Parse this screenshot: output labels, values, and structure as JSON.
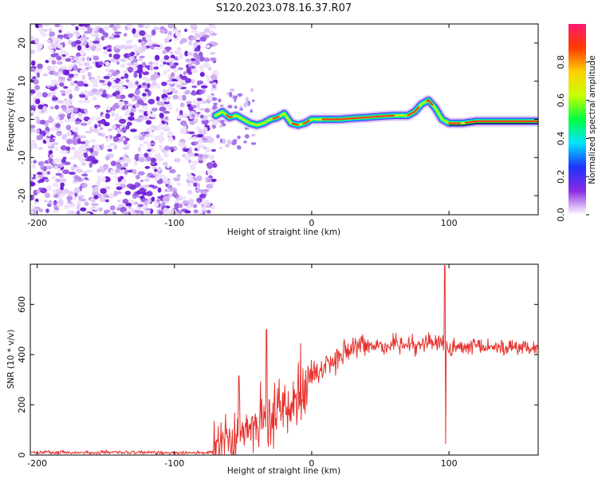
{
  "figure": {
    "title": "S120.2023.078.16.37.R07"
  },
  "chart_data": [
    {
      "type": "heatmap",
      "xlabel": "Height of straight line (km)",
      "ylabel": "Frequency (Hz)",
      "xlim": [
        -205,
        165
      ],
      "ylim": [
        -25,
        25
      ],
      "x_ticks": [
        -200,
        -100,
        0,
        100
      ],
      "y_ticks": [
        -20,
        -10,
        0,
        10,
        20
      ],
      "noise_region_x": [
        -205,
        -70
      ],
      "ridge": {
        "x": [
          -70,
          -65,
          -60,
          -55,
          -50,
          -45,
          -40,
          -35,
          -30,
          -25,
          -20,
          -15,
          -10,
          -5,
          0,
          10,
          20,
          30,
          40,
          50,
          60,
          70,
          75,
          80,
          85,
          90,
          95,
          100,
          110,
          120,
          130,
          140,
          150,
          165
        ],
        "y": [
          1,
          2,
          0.5,
          1,
          0,
          -1,
          -1.5,
          -1,
          0,
          0.5,
          1.5,
          -1,
          -1.5,
          -1,
          0,
          0,
          0,
          0.3,
          0.5,
          0.8,
          1,
          1,
          2,
          4,
          5,
          3,
          0,
          -1,
          -1,
          -0.5,
          -0.5,
          -0.5,
          -0.5,
          -0.5
        ]
      },
      "colorbar": {
        "label": "Normalized spectral amplitude",
        "range": [
          0,
          1
        ],
        "ticks": [
          "0.0",
          "0.2",
          "0.4",
          "0.6",
          "0.8"
        ],
        "colors": [
          "#ffffff",
          "#8a2be2",
          "#1e32ff",
          "#00e5ff",
          "#00ff40",
          "#c8ff00",
          "#ffd000",
          "#ff3a00",
          "#ff1a6e"
        ]
      }
    },
    {
      "type": "line",
      "xlabel": "Height of straight line (km)",
      "ylabel": "SNR (10 * v/v)",
      "xlim": [
        -205,
        165
      ],
      "ylim": [
        0,
        760
      ],
      "x_ticks": [
        -200,
        -100,
        0,
        100
      ],
      "y_ticks": [
        0,
        200,
        400,
        600
      ],
      "color": "#e8322e",
      "trend": {
        "x": [
          -205,
          -72,
          -65,
          -55,
          -45,
          -35,
          -25,
          -15,
          -5,
          0,
          10,
          20,
          30,
          40,
          60,
          80,
          90,
          95,
          100,
          110,
          130,
          150,
          165
        ],
        "y": [
          10,
          10,
          40,
          70,
          100,
          130,
          175,
          225,
          285,
          310,
          355,
          395,
          420,
          435,
          440,
          445,
          450,
          440,
          420,
          425,
          430,
          430,
          430
        ]
      },
      "spikes": [
        {
          "x": -53,
          "y": 315
        },
        {
          "x": -33,
          "y": 500
        },
        {
          "x": -8,
          "y": 445
        },
        {
          "x": 97,
          "y": 755
        },
        {
          "x": 97.5,
          "y": 45
        }
      ]
    }
  ]
}
